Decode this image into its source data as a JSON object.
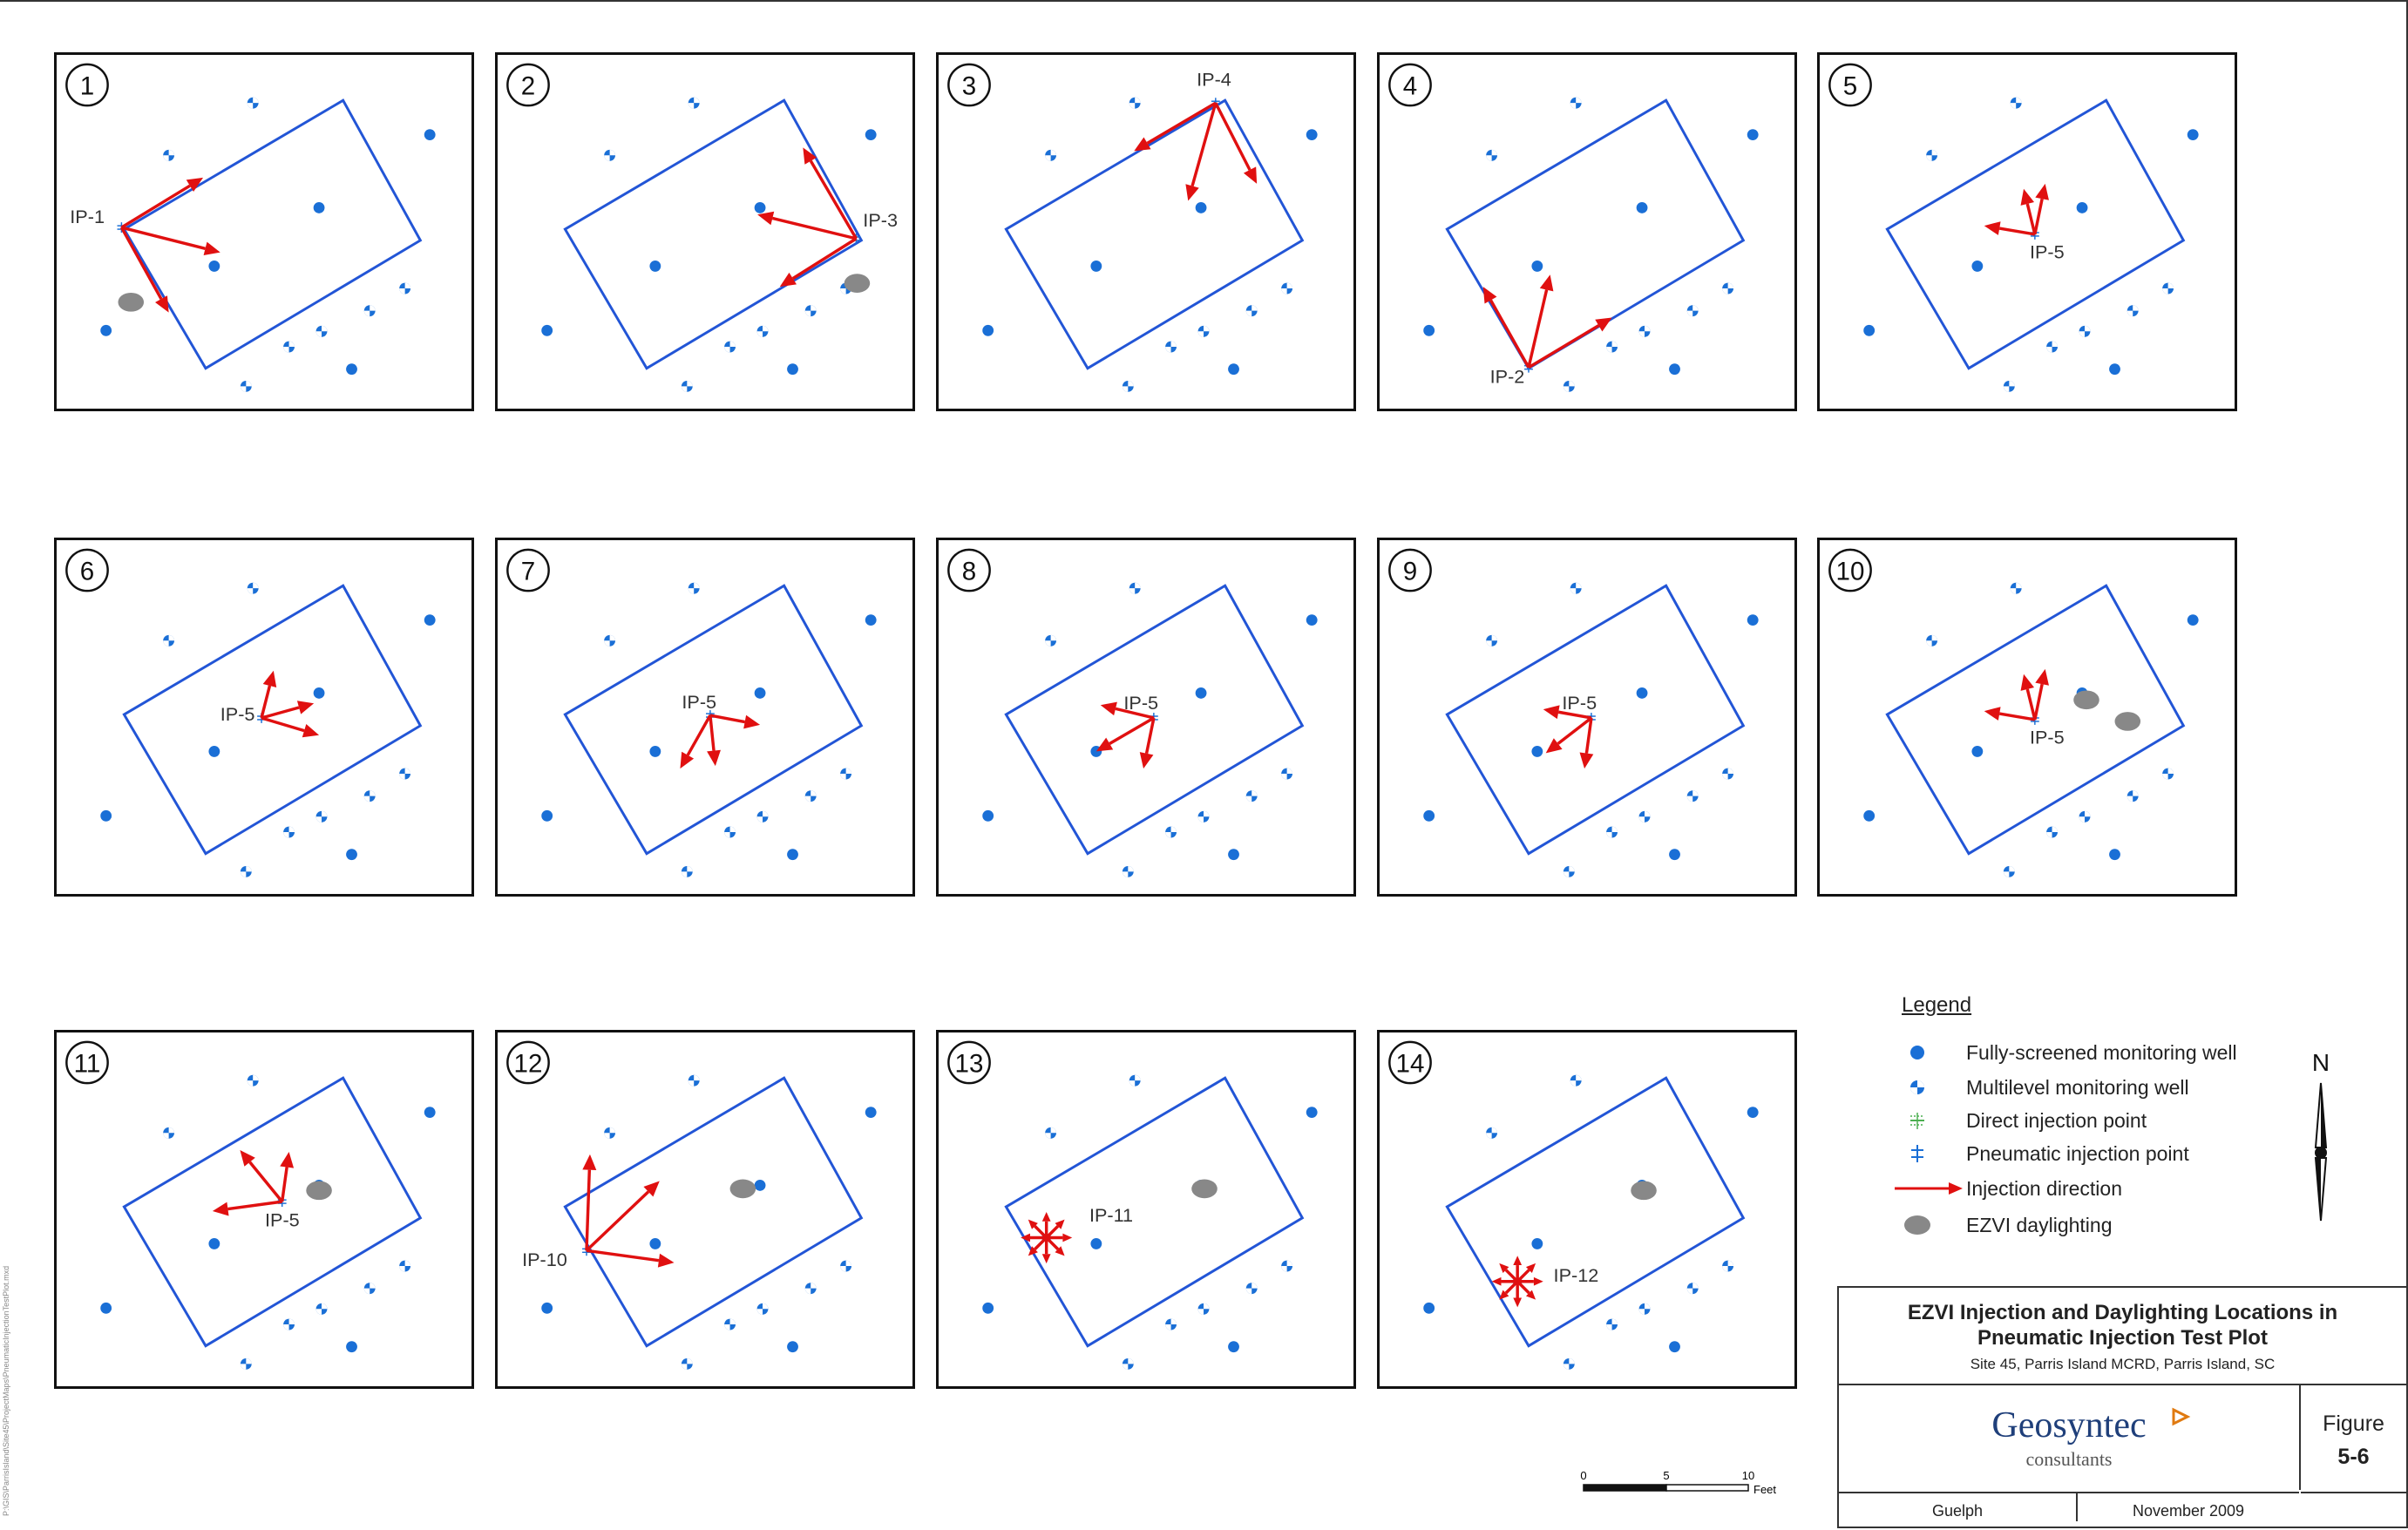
{
  "panel_numbers": [
    "1",
    "2",
    "3",
    "4",
    "5",
    "6",
    "7",
    "8",
    "9",
    "10",
    "11",
    "12",
    "13",
    "14"
  ],
  "injection_labels": {
    "p1": "IP-1",
    "p2": "IP-3",
    "p3": "IP-4",
    "p4": "IP-2",
    "p5": "IP-5",
    "p6": "IP-5",
    "p7": "IP-5",
    "p8": "IP-5",
    "p9": "IP-5",
    "p10": "IP-5",
    "p11": "IP-5",
    "p12": "IP-10",
    "p13": "IP-11",
    "p14": "IP-12"
  },
  "legend": {
    "title": "Legend",
    "items": [
      {
        "symbol": "fully-screened-well-icon",
        "label": "Fully-screened monitoring well",
        "color": "#1a6fd6"
      },
      {
        "symbol": "multilevel-well-icon",
        "label": "Multilevel monitoring well",
        "color": "#1a6fd6"
      },
      {
        "symbol": "direct-injection-point-icon",
        "label": "Direct injection point",
        "color": "#4caf50"
      },
      {
        "symbol": "pneumatic-injection-point-icon",
        "label": "Pneumatic injection point",
        "color": "#1a6fd6"
      },
      {
        "symbol": "injection-arrow-icon",
        "label": "Injection direction",
        "color": "#e01010"
      },
      {
        "symbol": "daylighting-icon",
        "label": "EZVI daylighting",
        "color": "#888888"
      }
    ]
  },
  "north_label": "N",
  "scale_bar": {
    "ticks": [
      "0",
      "5",
      "10"
    ],
    "unit": "Feet"
  },
  "title_block": {
    "title": "EZVI Injection and Daylighting Locations in Pneumatic Injection Test Plot",
    "subtitle": "Site 45, Parris Island MCRD, Parris Island, SC",
    "logo_name": "Geosyntec",
    "logo_sub": "consultants",
    "figure_label": "Figure",
    "figure_number": "5-6",
    "office": "Guelph",
    "date": "November 2009"
  },
  "colors": {
    "plot_outline": "#2255d6",
    "well_blue": "#1a6fd6",
    "arrow_red": "#e01010",
    "daylight_gray": "#888888"
  },
  "side_note": "P:\\GIS\\ParrisIsland\\Site45\\ProjectMaps\\PneumaticInjectionTestPlot.mxd"
}
